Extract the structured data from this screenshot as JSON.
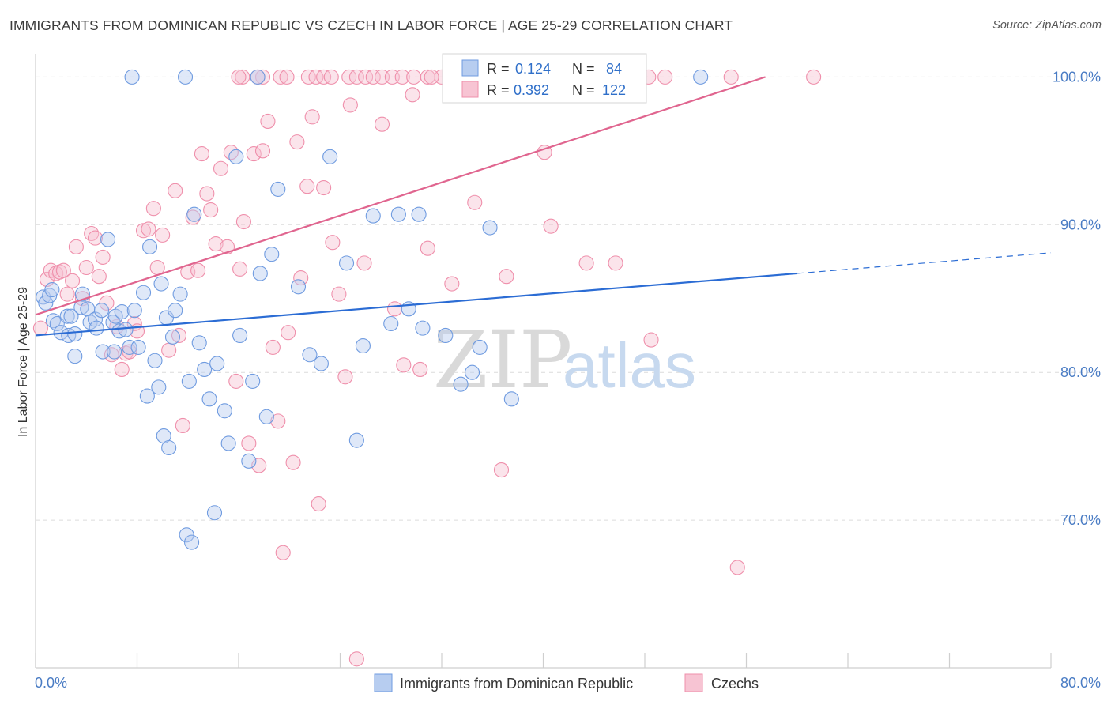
{
  "title": "IMMIGRANTS FROM DOMINICAN REPUBLIC VS CZECH IN LABOR FORCE | AGE 25-29 CORRELATION CHART",
  "source": "Source: ZipAtlas.com",
  "watermark": {
    "zip": "ZIP",
    "atlas": "atlas"
  },
  "legend": {
    "blue": {
      "r_label": "R =",
      "r_value": "0.124",
      "n_label": "N =",
      "n_value": "84"
    },
    "pink": {
      "r_label": "R =",
      "r_value": "0.392",
      "n_label": "N =",
      "n_value": "122"
    }
  },
  "bottom_legend": {
    "blue": "Immigrants from Dominican Republic",
    "pink": "Czechs"
  },
  "colors": {
    "blue": "#6f9be0",
    "blue_fill": "#b7cdf0",
    "blue_line": "#2b6cd4",
    "pink": "#ef8fab",
    "pink_fill": "#f7c4d3",
    "pink_line": "#e0658f",
    "grid": "#dcdcdc",
    "tick_text": "#4a7cc4"
  },
  "chart_data": {
    "type": "scatter",
    "xlabel": "",
    "ylabel": "In Labor Force | Age 25-29",
    "xlim": [
      0,
      80
    ],
    "ylim": [
      60,
      102
    ],
    "x_tick_labels": [
      "0.0%",
      "80.0%"
    ],
    "y_ticks": [
      70,
      80,
      90,
      100
    ],
    "y_tick_labels": [
      "70.0%",
      "80.0%",
      "90.0%",
      "100.0%"
    ],
    "grid": "horizontal dashed",
    "series": [
      {
        "name": "Immigrants from Dominican Republic",
        "color": "blue",
        "points": [
          [
            0.6,
            85.1
          ],
          [
            0.8,
            84.7
          ],
          [
            1.1,
            85.2
          ],
          [
            1.3,
            85.6
          ],
          [
            1.4,
            83.5
          ],
          [
            1.7,
            83.3
          ],
          [
            2.0,
            82.7
          ],
          [
            2.5,
            83.8
          ],
          [
            2.6,
            82.5
          ],
          [
            2.8,
            83.8
          ],
          [
            3.1,
            82.6
          ],
          [
            3.1,
            81.1
          ],
          [
            3.6,
            84.4
          ],
          [
            3.7,
            85.3
          ],
          [
            4.1,
            84.3
          ],
          [
            4.3,
            83.4
          ],
          [
            4.7,
            83.6
          ],
          [
            4.8,
            83.0
          ],
          [
            5.2,
            84.2
          ],
          [
            5.3,
            81.4
          ],
          [
            5.7,
            89.0
          ],
          [
            6.1,
            83.4
          ],
          [
            6.2,
            81.4
          ],
          [
            6.3,
            83.8
          ],
          [
            6.6,
            82.8
          ],
          [
            6.8,
            84.1
          ],
          [
            7.1,
            82.9
          ],
          [
            7.4,
            81.7
          ],
          [
            7.8,
            84.2
          ],
          [
            8.1,
            81.7
          ],
          [
            8.5,
            85.4
          ],
          [
            8.8,
            78.4
          ],
          [
            9.0,
            88.5
          ],
          [
            9.4,
            80.8
          ],
          [
            9.7,
            79.0
          ],
          [
            9.9,
            86.0
          ],
          [
            10.1,
            75.7
          ],
          [
            10.3,
            83.7
          ],
          [
            10.5,
            74.9
          ],
          [
            10.8,
            82.4
          ],
          [
            11.0,
            84.2
          ],
          [
            11.4,
            85.3
          ],
          [
            11.9,
            69.0
          ],
          [
            12.1,
            79.4
          ],
          [
            12.3,
            68.5
          ],
          [
            12.5,
            90.7
          ],
          [
            12.9,
            82.0
          ],
          [
            13.3,
            80.2
          ],
          [
            13.7,
            78.2
          ],
          [
            14.3,
            80.6
          ],
          [
            14.1,
            70.5
          ],
          [
            14.9,
            77.4
          ],
          [
            15.2,
            75.2
          ],
          [
            15.8,
            94.6
          ],
          [
            16.1,
            82.5
          ],
          [
            16.8,
            74.0
          ],
          [
            17.1,
            79.4
          ],
          [
            17.7,
            86.7
          ],
          [
            18.2,
            77.0
          ],
          [
            18.6,
            88.0
          ],
          [
            19.1,
            92.4
          ],
          [
            20.7,
            85.8
          ],
          [
            21.6,
            81.2
          ],
          [
            22.5,
            80.6
          ],
          [
            23.2,
            94.6
          ],
          [
            24.5,
            87.4
          ],
          [
            25.3,
            75.4
          ],
          [
            25.8,
            81.8
          ],
          [
            26.6,
            90.6
          ],
          [
            28.0,
            83.3
          ],
          [
            28.6,
            90.7
          ],
          [
            29.4,
            84.3
          ],
          [
            30.2,
            90.7
          ],
          [
            30.5,
            83.0
          ],
          [
            32.3,
            82.5
          ],
          [
            33.5,
            79.2
          ],
          [
            34.4,
            80.0
          ],
          [
            35.0,
            81.7
          ],
          [
            35.8,
            89.8
          ],
          [
            37.5,
            78.2
          ],
          [
            7.6,
            100.0
          ],
          [
            11.8,
            100.0
          ],
          [
            17.5,
            100.0
          ],
          [
            52.4,
            100.0
          ]
        ]
      },
      {
        "name": "Czechs",
        "color": "pink",
        "points": [
          [
            0.4,
            83.0
          ],
          [
            0.9,
            86.3
          ],
          [
            1.2,
            86.9
          ],
          [
            1.6,
            86.7
          ],
          [
            1.9,
            86.8
          ],
          [
            2.2,
            86.9
          ],
          [
            2.5,
            85.3
          ],
          [
            2.9,
            86.2
          ],
          [
            3.2,
            88.5
          ],
          [
            3.7,
            85.0
          ],
          [
            4.0,
            87.1
          ],
          [
            4.4,
            89.4
          ],
          [
            4.7,
            89.1
          ],
          [
            5.0,
            86.5
          ],
          [
            5.3,
            87.8
          ],
          [
            5.6,
            84.7
          ],
          [
            6.0,
            81.2
          ],
          [
            6.4,
            83.1
          ],
          [
            6.8,
            80.2
          ],
          [
            7.1,
            81.3
          ],
          [
            7.4,
            81.4
          ],
          [
            7.8,
            83.3
          ],
          [
            8.0,
            82.8
          ],
          [
            8.5,
            89.6
          ],
          [
            8.9,
            89.7
          ],
          [
            9.3,
            91.1
          ],
          [
            9.6,
            87.1
          ],
          [
            10.0,
            89.3
          ],
          [
            10.5,
            81.5
          ],
          [
            11.0,
            92.3
          ],
          [
            11.3,
            82.5
          ],
          [
            11.6,
            76.4
          ],
          [
            12.0,
            86.8
          ],
          [
            12.4,
            90.5
          ],
          [
            12.8,
            86.9
          ],
          [
            13.1,
            94.8
          ],
          [
            13.5,
            92.1
          ],
          [
            13.8,
            91.0
          ],
          [
            14.2,
            88.7
          ],
          [
            14.6,
            93.8
          ],
          [
            15.1,
            88.5
          ],
          [
            15.4,
            94.9
          ],
          [
            15.8,
            79.4
          ],
          [
            16.1,
            87.0
          ],
          [
            16.4,
            90.2
          ],
          [
            16.8,
            75.2
          ],
          [
            17.2,
            94.8
          ],
          [
            17.6,
            73.7
          ],
          [
            17.9,
            95.0
          ],
          [
            18.3,
            97.0
          ],
          [
            18.7,
            81.7
          ],
          [
            19.1,
            76.7
          ],
          [
            19.5,
            67.8
          ],
          [
            19.9,
            82.7
          ],
          [
            20.3,
            73.9
          ],
          [
            20.6,
            95.6
          ],
          [
            20.9,
            86.4
          ],
          [
            21.4,
            92.6
          ],
          [
            21.8,
            97.3
          ],
          [
            22.3,
            71.1
          ],
          [
            22.7,
            92.5
          ],
          [
            23.4,
            88.8
          ],
          [
            23.9,
            85.3
          ],
          [
            24.4,
            79.7
          ],
          [
            24.8,
            98.1
          ],
          [
            25.3,
            60.6
          ],
          [
            25.9,
            87.4
          ],
          [
            27.3,
            96.8
          ],
          [
            28.3,
            84.3
          ],
          [
            29.0,
            80.5
          ],
          [
            29.7,
            98.8
          ],
          [
            30.3,
            80.2
          ],
          [
            30.9,
            88.4
          ],
          [
            32.8,
            86.0
          ],
          [
            34.6,
            91.5
          ],
          [
            36.7,
            73.4
          ],
          [
            37.1,
            86.5
          ],
          [
            40.1,
            94.9
          ],
          [
            40.6,
            89.9
          ],
          [
            43.4,
            87.4
          ],
          [
            45.7,
            87.4
          ],
          [
            48.5,
            82.2
          ],
          [
            55.3,
            66.8
          ],
          [
            16.3,
            100.0
          ],
          [
            16.0,
            100.0
          ],
          [
            17.9,
            100.0
          ],
          [
            17.5,
            100.0
          ],
          [
            19.3,
            100.0
          ],
          [
            19.8,
            100.0
          ],
          [
            21.5,
            100.0
          ],
          [
            22.1,
            100.0
          ],
          [
            22.7,
            100.0
          ],
          [
            23.3,
            100.0
          ],
          [
            24.7,
            100.0
          ],
          [
            25.3,
            100.0
          ],
          [
            26.0,
            100.0
          ],
          [
            26.6,
            100.0
          ],
          [
            27.3,
            100.0
          ],
          [
            28.1,
            100.0
          ],
          [
            28.9,
            100.0
          ],
          [
            29.8,
            100.0
          ],
          [
            30.9,
            100.0
          ],
          [
            32.0,
            100.0
          ],
          [
            33.4,
            100.0
          ],
          [
            35.2,
            100.0
          ],
          [
            36.8,
            100.0
          ],
          [
            38.3,
            100.0
          ],
          [
            40.3,
            100.0
          ],
          [
            42.3,
            100.0
          ],
          [
            44.8,
            100.0
          ],
          [
            48.3,
            100.0
          ],
          [
            49.6,
            100.0
          ],
          [
            54.8,
            100.0
          ],
          [
            61.3,
            100.0
          ],
          [
            31.2,
            100.0
          ],
          [
            34.0,
            100.0
          ],
          [
            37.5,
            100.0
          ],
          [
            39.5,
            100.0
          ],
          [
            41.0,
            100.0
          ],
          [
            43.5,
            100.0
          ],
          [
            46.0,
            100.0
          ],
          [
            47.3,
            100.0
          ]
        ]
      }
    ],
    "trendlines": [
      {
        "series": "Immigrants from Dominican Republic",
        "x": [
          0,
          60
        ],
        "y": [
          82.5,
          86.7
        ],
        "dashed_extension_to_x": 80,
        "dashed_extension_y": 88.1
      },
      {
        "series": "Czechs",
        "x": [
          0,
          57.5
        ],
        "y": [
          83.9,
          100.0
        ]
      }
    ]
  }
}
